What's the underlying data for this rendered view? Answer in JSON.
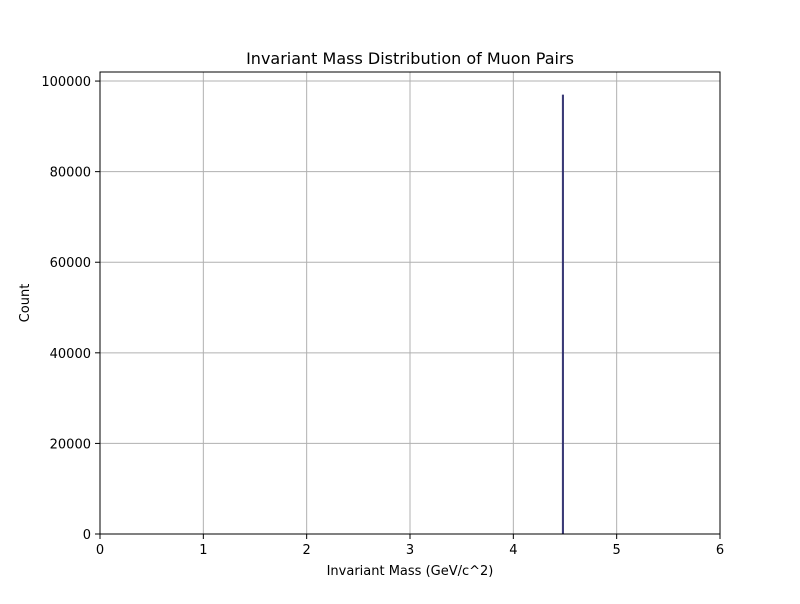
{
  "chart_data": {
    "type": "bar",
    "title": "Invariant Mass Distribution of Muon Pairs",
    "xlabel": "Invariant Mass (GeV/c^2)",
    "ylabel": "Count",
    "xlim": [
      0,
      6
    ],
    "ylim": [
      0,
      102000
    ],
    "xticks": [
      0,
      1,
      2,
      3,
      4,
      5,
      6
    ],
    "yticks": [
      0,
      20000,
      40000,
      60000,
      80000,
      100000
    ],
    "grid": true,
    "bin_width": 0.02,
    "bars": [
      {
        "x_start": 4.47,
        "x_end": 4.49,
        "count": 97000
      }
    ],
    "bar_color": "#2f2f6f"
  }
}
